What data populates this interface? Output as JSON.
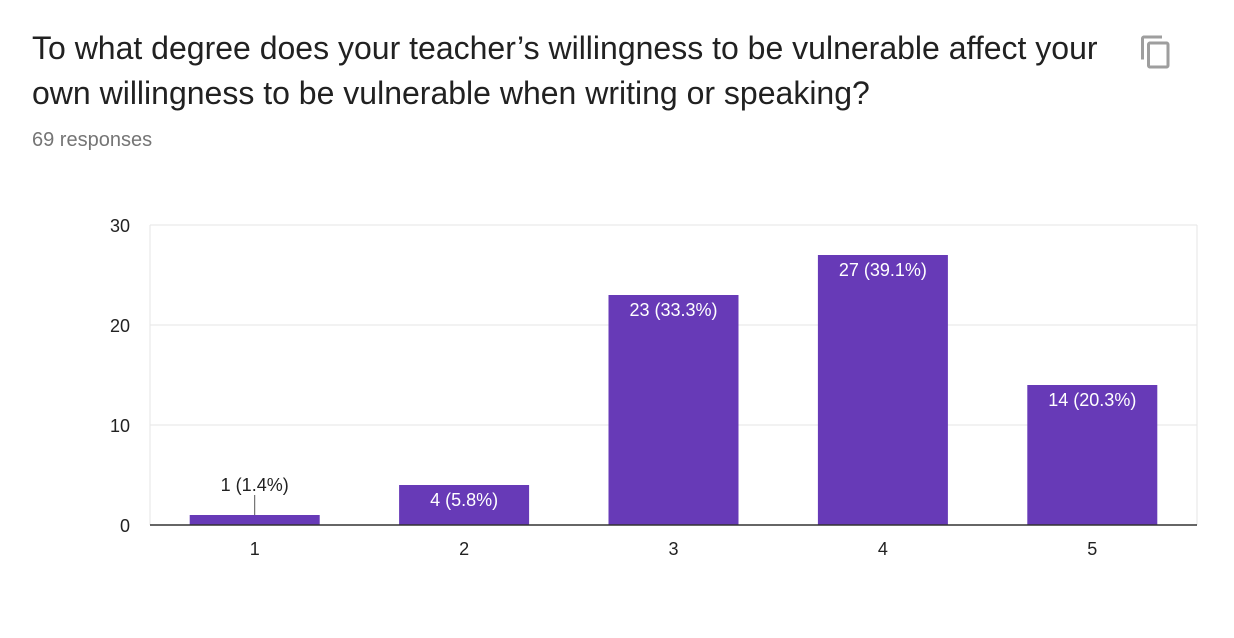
{
  "question": {
    "title": "To what degree does your teacher’s willingness to be vulnerable affect your own willingness to be vulnerable when writing or speaking?",
    "response_count": "69 responses",
    "copy_icon": "copy-icon"
  },
  "colors": {
    "bar": "#673ab7",
    "grid": "#e6e6e6",
    "axis": "#333333",
    "label_inside": "#ffffff",
    "label_outside": "#222222"
  },
  "chart_data": {
    "type": "bar",
    "title": "",
    "xlabel": "",
    "ylabel": "",
    "categories": [
      "1",
      "2",
      "3",
      "4",
      "5"
    ],
    "values": [
      1,
      4,
      23,
      27,
      14
    ],
    "data_labels": [
      "1 (1.4%)",
      "4 (5.8%)",
      "23 (33.3%)",
      "27 (39.1%)",
      "14 (20.3%)"
    ],
    "ylim": [
      0,
      30
    ],
    "yticks": [
      0,
      10,
      20,
      30
    ],
    "ytick_labels": [
      "0",
      "10",
      "20",
      "30"
    ],
    "grid": true,
    "legend": "none"
  }
}
